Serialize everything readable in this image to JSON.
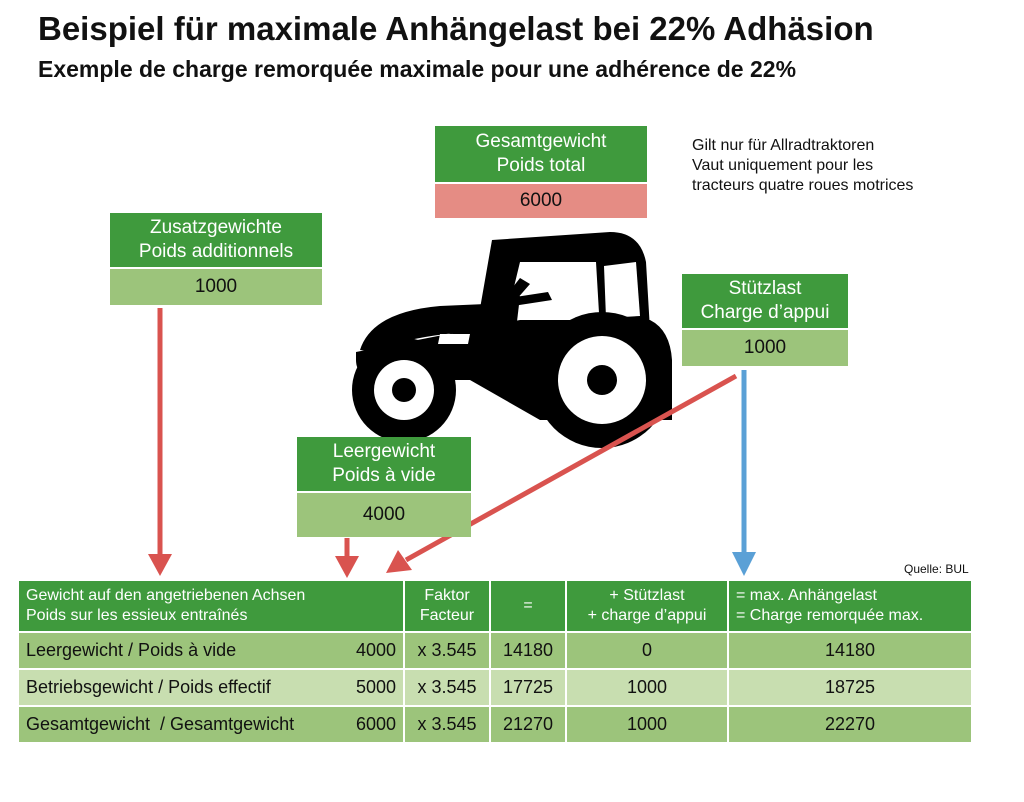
{
  "title": "Beispiel für maximale Anhängelast bei 22% Adhäsion",
  "subtitle": "Exemple de charge remorquée maximale pour une adhérence de 22%",
  "note": [
    "Gilt nur für Allradtraktoren",
    "Vaut uniquement pour les",
    "tracteurs quatre roues motrices"
  ],
  "boxes": {
    "total": {
      "label_de": "Gesamtgewicht",
      "label_fr": "Poids total",
      "value": "6000"
    },
    "additional": {
      "label_de": "Zusatzgewichte",
      "label_fr": "Poids additionnels",
      "value": "1000"
    },
    "support": {
      "label_de": "Stützlast",
      "label_fr": "Charge d’appui",
      "value": "1000"
    },
    "empty": {
      "label_de": "Leergewicht",
      "label_fr": "Poids à vide",
      "value": "4000"
    }
  },
  "colors": {
    "green": "#3f9a3d",
    "light_green": "#9cc47b",
    "pale_green": "#c8deb0",
    "red_value": "#e58c84",
    "arrow_red": "#d9534f",
    "arrow_blue": "#5aa0d6"
  },
  "source": "Quelle: BUL",
  "table": {
    "headers": {
      "col1": [
        "Gewicht auf den angetriebenen Achsen",
        "Poids sur les essieux entraînés"
      ],
      "col2": [
        "Faktor",
        "Facteur"
      ],
      "col3": "=",
      "col4": [
        "+ Stützlast",
        "+ charge d’appui"
      ],
      "col5": [
        "= max. Anhängelast",
        "= Charge remorquée max."
      ]
    },
    "rows": [
      {
        "label": "Leergewicht / Poids à vide",
        "weight": "4000",
        "factor": "x 3.545",
        "product": "14180",
        "support": "0",
        "result": "14180"
      },
      {
        "label": "Betriebsgewicht / Poids effectif",
        "weight": "5000",
        "factor": "x 3.545",
        "product": "17725",
        "support": "1000",
        "result": "18725"
      },
      {
        "label": "Gesamtgewicht  / Gesamtgewicht",
        "weight": "6000",
        "factor": "x 3.545",
        "product": "21270",
        "support": "1000",
        "result": "22270"
      }
    ]
  }
}
